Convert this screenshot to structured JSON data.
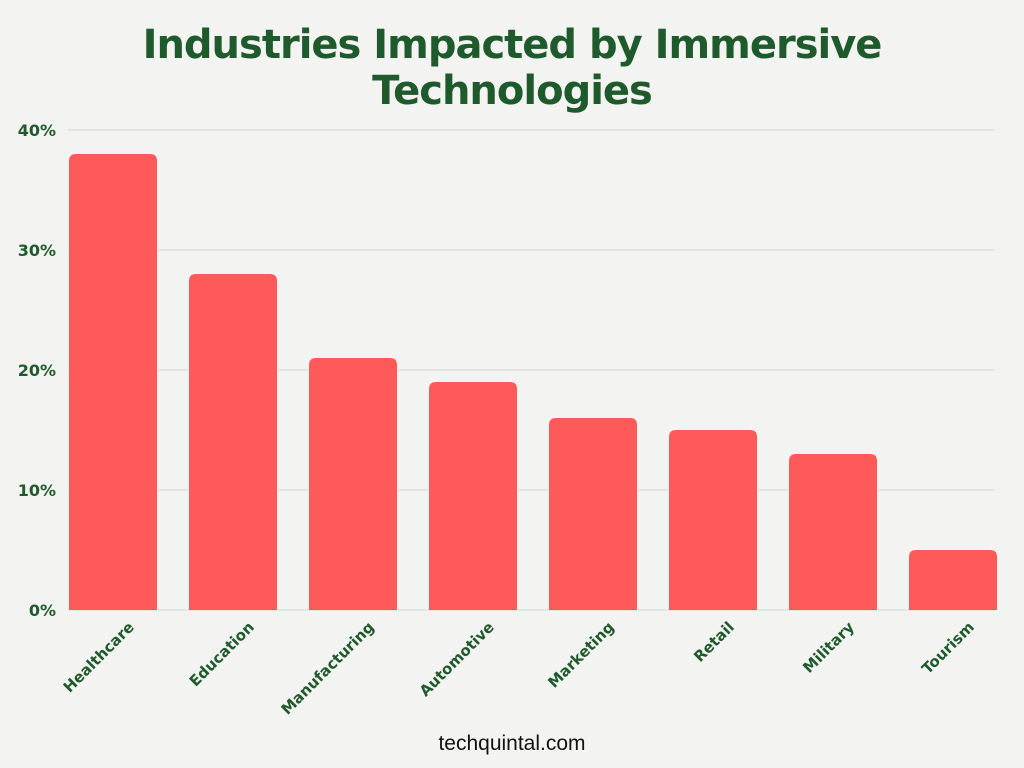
{
  "chart_data": {
    "type": "bar",
    "title": "Industries Impacted by Immersive Technologies",
    "categories": [
      "Healthcare",
      "Education",
      "Manufacturing",
      "Automotive",
      "Marketing",
      "Retail",
      "Military",
      "Tourism"
    ],
    "values": [
      38,
      28,
      21,
      19,
      16,
      15,
      13,
      5
    ],
    "unit": "%",
    "ylim": [
      0,
      40
    ],
    "yticks": [
      0,
      10,
      20,
      30,
      40
    ],
    "ytick_labels": [
      "0%",
      "10%",
      "20%",
      "30%",
      "40%"
    ],
    "xlabel": "",
    "ylabel": "",
    "grid": true,
    "bar_color": "#ff5a5a",
    "text_color": "#1f5a2c"
  },
  "footer": "techquintal.com"
}
